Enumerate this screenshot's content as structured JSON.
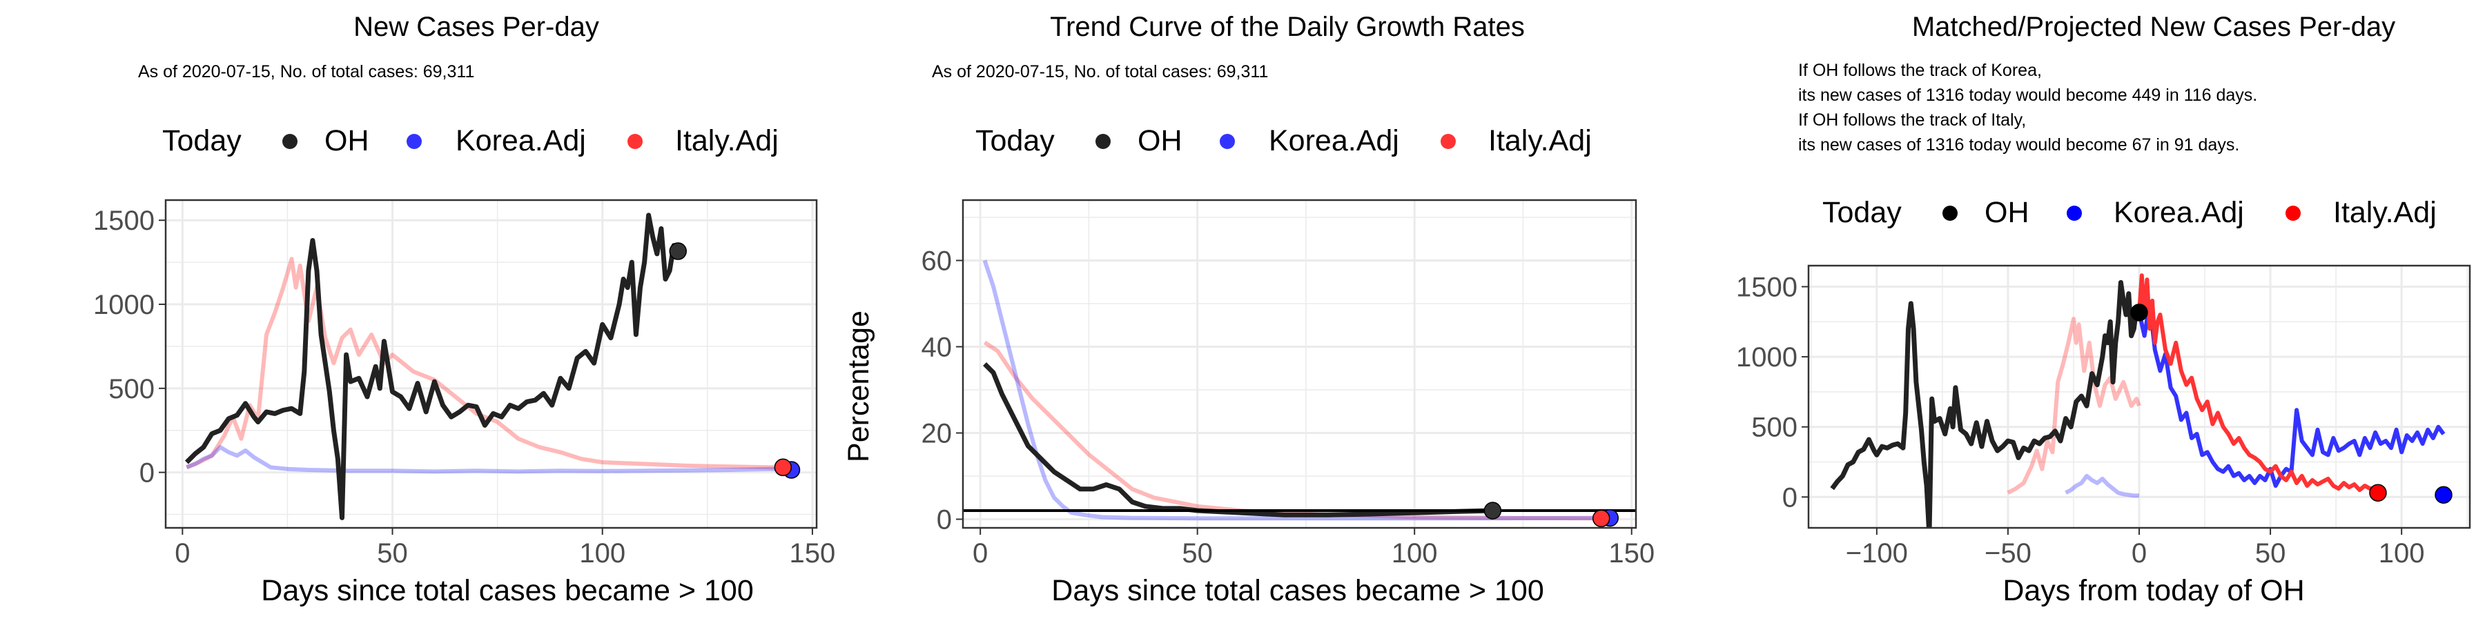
{
  "colors": {
    "OH": "#222222",
    "Korea.Adj": "#3333ff",
    "Italy.Adj": "#ff3333",
    "grid": "#ebebeb",
    "panel_border": "#333333"
  },
  "panels": [
    {
      "title": "New Cases Per-day",
      "subtitle_lines": [
        "As of 2020-07-15, No. of total cases: 69,311"
      ],
      "legend_title": "Today",
      "legend_items": [
        "OH",
        "Korea.Adj",
        "Italy.Adj"
      ],
      "xlabel": "Days since total cases became > 100",
      "ylabel": ""
    },
    {
      "title": "Trend Curve of the Daily Growth Rates",
      "subtitle_lines": [
        "As of 2020-07-15, No. of total cases: 69,311"
      ],
      "legend_title": "Today",
      "legend_items": [
        "OH",
        "Korea.Adj",
        "Italy.Adj"
      ],
      "xlabel": "Days since total cases became > 100",
      "ylabel": "Percentage"
    },
    {
      "title": "Matched/Projected New Cases Per-day",
      "subtitle_lines": [
        "If OH follows the track of Korea,",
        "its new cases of 1316 today would become 449 in 116 days.",
        "If OH follows the track of Italy,",
        "its new cases of 1316 today would become 67 in 91 days."
      ],
      "legend_title": "Today",
      "legend_items": [
        "OH",
        "Korea.Adj",
        "Italy.Adj"
      ],
      "xlabel": "Days from today of OH",
      "ylabel": ""
    }
  ],
  "chart_data": [
    {
      "type": "line",
      "title": "New Cases Per-day",
      "xlabel": "Days since total cases became > 100",
      "ylabel": "",
      "xlim": [
        -4,
        151
      ],
      "ylim": [
        -330,
        1620
      ],
      "xticks": [
        0,
        50,
        100,
        150
      ],
      "yticks": [
        0,
        500,
        1000,
        1500
      ],
      "series": [
        {
          "name": "OH",
          "x": [
            1,
            3,
            5,
            7,
            9,
            11,
            13,
            15,
            17,
            18,
            20,
            22,
            24,
            26,
            28,
            29,
            30,
            31,
            32,
            33,
            35,
            36,
            37,
            38,
            39,
            40,
            42,
            44,
            46,
            47,
            48,
            50,
            52,
            54,
            56,
            58,
            60,
            62,
            64,
            66,
            68,
            70,
            72,
            74,
            76,
            78,
            80,
            82,
            84,
            86,
            88,
            90,
            92,
            94,
            96,
            98,
            100,
            102,
            104,
            105,
            106,
            107,
            108,
            109,
            110,
            111,
            112,
            113,
            114,
            115,
            116,
            117,
            118
          ],
          "y": [
            60,
            110,
            150,
            230,
            250,
            320,
            340,
            410,
            330,
            300,
            360,
            350,
            370,
            380,
            350,
            600,
            1200,
            1380,
            1200,
            820,
            480,
            250,
            80,
            -270,
            700,
            540,
            560,
            450,
            630,
            500,
            780,
            480,
            450,
            380,
            530,
            360,
            540,
            400,
            330,
            360,
            400,
            390,
            280,
            350,
            330,
            400,
            380,
            420,
            430,
            470,
            400,
            560,
            500,
            680,
            720,
            650,
            880,
            800,
            1000,
            1150,
            1100,
            1250,
            820,
            1100,
            1250,
            1530,
            1400,
            1300,
            1450,
            1150,
            1200,
            1350,
            1316
          ],
          "today": {
            "x": 118,
            "y": 1316
          }
        },
        {
          "name": "Korea.Adj",
          "x": [
            1,
            3,
            5,
            7,
            9,
            11,
            13,
            15,
            17,
            19,
            21,
            25,
            30,
            40,
            50,
            60,
            70,
            80,
            90,
            100,
            110,
            120,
            130,
            140,
            145
          ],
          "y": [
            30,
            50,
            80,
            100,
            150,
            120,
            100,
            130,
            90,
            60,
            30,
            20,
            15,
            10,
            10,
            5,
            10,
            5,
            10,
            8,
            10,
            12,
            15,
            20,
            15
          ],
          "today": {
            "x": 145,
            "y": 15
          }
        },
        {
          "name": "Italy.Adj",
          "x": [
            1,
            4,
            7,
            10,
            12,
            14,
            16,
            18,
            20,
            22,
            24,
            26,
            27,
            28,
            30,
            32,
            34,
            36,
            38,
            40,
            42,
            45,
            48,
            50,
            55,
            60,
            65,
            70,
            75,
            80,
            85,
            90,
            95,
            100,
            110,
            120,
            130,
            140,
            143
          ],
          "y": [
            30,
            60,
            100,
            220,
            330,
            200,
            400,
            320,
            820,
            950,
            1100,
            1270,
            1100,
            1230,
            900,
            1100,
            800,
            650,
            800,
            850,
            700,
            820,
            650,
            700,
            600,
            550,
            450,
            350,
            300,
            200,
            150,
            120,
            80,
            60,
            50,
            40,
            35,
            30,
            30
          ],
          "today": {
            "x": 143,
            "y": 30
          }
        }
      ]
    },
    {
      "type": "line",
      "title": "Trend Curve of the Daily Growth Rates",
      "xlabel": "Days since total cases became > 100",
      "ylabel": "Percentage",
      "xlim": [
        -4,
        151
      ],
      "ylim": [
        -2,
        74
      ],
      "xticks": [
        0,
        50,
        100,
        150
      ],
      "yticks": [
        0,
        20,
        40,
        60
      ],
      "hline": 2,
      "series": [
        {
          "name": "OH",
          "x": [
            1,
            3,
            5,
            8,
            11,
            14,
            17,
            20,
            23,
            26,
            29,
            32,
            35,
            38,
            42,
            46,
            50,
            60,
            70,
            80,
            90,
            100,
            110,
            118
          ],
          "y": [
            36,
            34,
            29,
            23,
            17,
            14,
            11,
            9,
            7,
            7,
            8,
            7,
            4,
            3,
            2.5,
            2.5,
            2,
            1.5,
            1,
            1,
            1.2,
            1.5,
            1.8,
            2
          ],
          "today": {
            "x": 118,
            "y": 2
          }
        },
        {
          "name": "Korea.Adj",
          "x": [
            1,
            3,
            5,
            7,
            9,
            11,
            13,
            15,
            17,
            19,
            21,
            24,
            28,
            35,
            50,
            80,
            110,
            145
          ],
          "y": [
            60,
            54,
            46,
            38,
            30,
            22,
            15,
            9,
            5,
            3,
            1.5,
            1,
            0.5,
            0.3,
            0.2,
            0.2,
            0.2,
            0.3
          ],
          "today": {
            "x": 145,
            "y": 0.3
          }
        },
        {
          "name": "Italy.Adj",
          "x": [
            1,
            4,
            8,
            12,
            16,
            20,
            25,
            30,
            35,
            40,
            45,
            50,
            60,
            70,
            80,
            90,
            100,
            120,
            143
          ],
          "y": [
            41,
            39,
            33,
            28,
            24,
            20,
            15,
            11,
            7,
            5,
            4,
            3,
            2,
            1.5,
            1,
            0.8,
            0.5,
            0.3,
            0.2
          ],
          "today": {
            "x": 143,
            "y": 0.2
          }
        }
      ]
    },
    {
      "type": "line",
      "title": "Matched/Projected New Cases Per-day",
      "xlabel": "Days from today of OH",
      "ylabel": "",
      "xlim": [
        -126,
        126
      ],
      "ylim": [
        -220,
        1650
      ],
      "xticks": [
        -100,
        -50,
        0,
        50,
        100
      ],
      "yticks": [
        0,
        500,
        1000,
        1500
      ],
      "series": [
        {
          "name": "OH",
          "x": [
            -117,
            -115,
            -113,
            -111,
            -109,
            -107,
            -105,
            -103,
            -101,
            -100,
            -98,
            -96,
            -94,
            -92,
            -90,
            -89,
            -88,
            -87,
            -86,
            -85,
            -83,
            -82,
            -81,
            -80,
            -79,
            -78,
            -76,
            -74,
            -72,
            -71,
            -70,
            -68,
            -66,
            -64,
            -62,
            -60,
            -58,
            -56,
            -54,
            -52,
            -50,
            -48,
            -46,
            -44,
            -42,
            -40,
            -38,
            -36,
            -34,
            -32,
            -30,
            -28,
            -26,
            -24,
            -22,
            -20,
            -18,
            -16,
            -14,
            -13,
            -12,
            -11,
            -10,
            -9,
            -8,
            -7,
            -6,
            -5,
            -4,
            -3,
            -2,
            -1,
            0
          ],
          "y": [
            60,
            110,
            150,
            230,
            250,
            320,
            340,
            410,
            330,
            300,
            360,
            350,
            370,
            380,
            350,
            600,
            1200,
            1380,
            1200,
            820,
            480,
            250,
            80,
            -270,
            700,
            540,
            560,
            450,
            630,
            500,
            780,
            480,
            450,
            380,
            530,
            360,
            540,
            400,
            330,
            360,
            400,
            390,
            280,
            350,
            330,
            400,
            380,
            420,
            430,
            470,
            400,
            560,
            500,
            680,
            720,
            650,
            880,
            800,
            1000,
            1150,
            1100,
            1250,
            820,
            1100,
            1250,
            1530,
            1400,
            1300,
            1450,
            1150,
            1200,
            1350,
            1316
          ],
          "today": {
            "x": 0,
            "y": 1316
          }
        },
        {
          "name": "Korea.Adj (history)",
          "x": [
            -28,
            -26,
            -24,
            -22,
            -20,
            -18,
            -16,
            -14,
            -12,
            -10,
            -8,
            -6,
            -4,
            -2,
            0
          ],
          "y": [
            30,
            50,
            80,
            100,
            150,
            120,
            100,
            130,
            90,
            60,
            30,
            20,
            15,
            10,
            10
          ]
        },
        {
          "name": "Korea.Adj",
          "x": [
            0,
            2,
            4,
            6,
            8,
            10,
            12,
            14,
            16,
            18,
            20,
            22,
            24,
            26,
            28,
            30,
            32,
            34,
            36,
            38,
            40,
            42,
            44,
            46,
            48,
            50,
            52,
            54,
            56,
            58,
            60,
            62,
            64,
            66,
            68,
            70,
            72,
            74,
            76,
            78,
            80,
            82,
            84,
            86,
            88,
            90,
            92,
            94,
            96,
            98,
            100,
            102,
            104,
            106,
            108,
            110,
            112,
            114,
            116
          ],
          "y": [
            1316,
            1150,
            1380,
            1050,
            900,
            1020,
            780,
            720,
            550,
            600,
            420,
            450,
            300,
            320,
            250,
            200,
            180,
            220,
            150,
            170,
            120,
            150,
            100,
            150,
            120,
            200,
            80,
            150,
            200,
            180,
            620,
            400,
            350,
            300,
            480,
            320,
            300,
            420,
            330,
            350,
            380,
            400,
            300,
            420,
            350,
            460,
            380,
            400,
            350,
            480,
            320,
            440,
            400,
            460,
            380,
            480,
            420,
            500,
            449
          ],
          "today": {
            "x": 116,
            "y": 15
          }
        },
        {
          "name": "Italy.Adj (history)",
          "x": [
            -50,
            -47,
            -44,
            -41,
            -39,
            -37,
            -35,
            -33,
            -31,
            -29,
            -27,
            -25,
            -24,
            -23,
            -21,
            -19,
            -17,
            -15,
            -13,
            -11,
            -9,
            -6,
            -3,
            -1,
            0
          ],
          "y": [
            30,
            60,
            100,
            220,
            330,
            200,
            400,
            320,
            820,
            950,
            1100,
            1270,
            1100,
            1230,
            900,
            1100,
            800,
            650,
            800,
            850,
            700,
            820,
            650,
            700,
            650
          ]
        },
        {
          "name": "Italy.Adj",
          "x": [
            0,
            1,
            2,
            3,
            4,
            5,
            6,
            7,
            8,
            10,
            12,
            14,
            16,
            18,
            20,
            22,
            24,
            26,
            28,
            30,
            32,
            34,
            36,
            38,
            40,
            42,
            44,
            46,
            48,
            50,
            52,
            54,
            56,
            58,
            60,
            62,
            64,
            66,
            68,
            70,
            72,
            74,
            76,
            78,
            80,
            82,
            84,
            86,
            88,
            91
          ],
          "y": [
            1316,
            1580,
            1300,
            1550,
            1200,
            1400,
            1100,
            1250,
            1300,
            1050,
            950,
            1100,
            900,
            800,
            850,
            700,
            620,
            680,
            520,
            600,
            500,
            450,
            380,
            420,
            350,
            300,
            280,
            250,
            200,
            180,
            220,
            150,
            120,
            180,
            100,
            150,
            80,
            120,
            90,
            110,
            130,
            80,
            60,
            100,
            70,
            90,
            50,
            80,
            60,
            67
          ],
          "today": {
            "x": 91,
            "y": 30
          }
        }
      ]
    }
  ]
}
